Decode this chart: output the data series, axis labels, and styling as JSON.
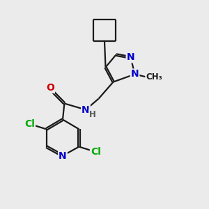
{
  "background_color": "#ebebeb",
  "bond_color": "#1a1a1a",
  "bond_width": 1.6,
  "atom_colors": {
    "N": "#0000cc",
    "O": "#cc0000",
    "Cl": "#00aa00",
    "C": "#1a1a1a",
    "H": "#555555"
  },
  "font_size": 10,
  "font_size_small": 8.5,
  "doffset": 0.045
}
